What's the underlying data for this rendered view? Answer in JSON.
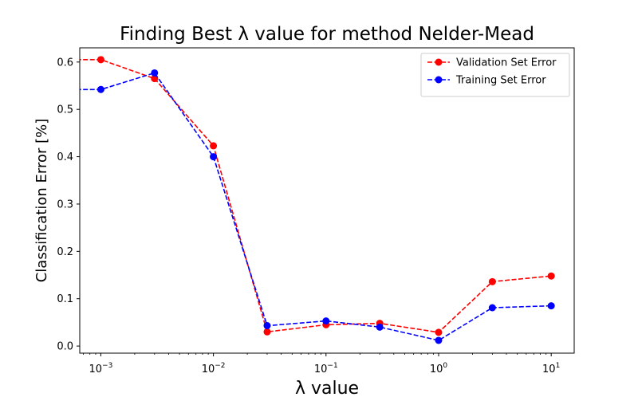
{
  "chart_data": {
    "type": "line",
    "title": "Finding Best λ value for method Nelder-Mead",
    "xlabel": "λ value",
    "ylabel": "Classification Error [%]",
    "x_scale": "log",
    "xlim": [
      0.00065,
      16
    ],
    "ylim": [
      -0.015,
      0.63
    ],
    "x": [
      0.0001,
      0.001,
      0.003,
      0.01,
      0.03,
      0.1,
      0.3,
      1,
      3,
      10
    ],
    "xticks": [
      {
        "value": 0.001,
        "base": "10",
        "exp": "−3"
      },
      {
        "value": 0.01,
        "base": "10",
        "exp": "−2"
      },
      {
        "value": 0.1,
        "base": "10",
        "exp": "−1"
      },
      {
        "value": 1,
        "base": "10",
        "exp": "0"
      },
      {
        "value": 10,
        "base": "10",
        "exp": "1"
      }
    ],
    "yticks": [
      "0.0",
      "0.1",
      "0.2",
      "0.3",
      "0.4",
      "0.5",
      "0.6"
    ],
    "grid": false,
    "legend_position": "top-right",
    "series": [
      {
        "name": "Validation Set Error",
        "color": "#ff0000",
        "values": [
          0.605,
          0.605,
          0.565,
          0.423,
          0.03,
          0.045,
          0.048,
          0.029,
          0.136,
          0.148
        ]
      },
      {
        "name": "Training Set Error",
        "color": "#0000ff",
        "values": [
          0.542,
          0.542,
          0.577,
          0.4,
          0.043,
          0.053,
          0.04,
          0.012,
          0.081,
          0.085
        ]
      }
    ]
  }
}
